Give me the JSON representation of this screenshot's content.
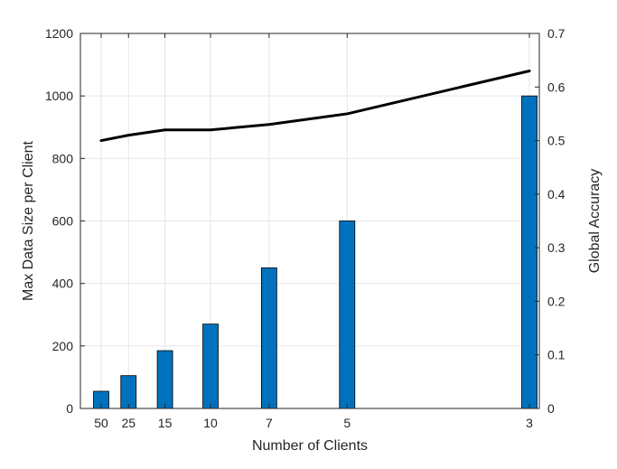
{
  "chart_data": {
    "type": "bar",
    "title": "",
    "xlabel": "Number of Clients",
    "ylabel_left": "Max Data Size per Client",
    "ylabel_right": "Global Accuracy",
    "x_axis": {
      "scale": "reciprocal",
      "ticks": [
        50,
        25,
        15,
        10,
        7,
        5,
        3
      ]
    },
    "ylim_left": [
      0,
      1200
    ],
    "ylim_right": [
      0,
      0.7
    ],
    "yticks_left": [
      0,
      200,
      400,
      600,
      800,
      1000,
      1200
    ],
    "yticks_right": [
      0,
      0.1,
      0.2,
      0.3,
      0.4,
      0.5,
      0.6,
      0.7
    ],
    "grid": true,
    "series": [
      {
        "kind": "bar",
        "axis": "left",
        "color": "#0072BD",
        "points": [
          {
            "x": 50,
            "y": 55
          },
          {
            "x": 25,
            "y": 105
          },
          {
            "x": 15,
            "y": 185
          },
          {
            "x": 10,
            "y": 270
          },
          {
            "x": 7,
            "y": 450
          },
          {
            "x": 5,
            "y": 600
          },
          {
            "x": 3,
            "y": 1000
          }
        ]
      },
      {
        "kind": "line",
        "axis": "right",
        "color": "#000000",
        "points": [
          {
            "x": 50,
            "y": 0.5
          },
          {
            "x": 25,
            "y": 0.51
          },
          {
            "x": 15,
            "y": 0.52
          },
          {
            "x": 10,
            "y": 0.52
          },
          {
            "x": 7,
            "y": 0.53
          },
          {
            "x": 5,
            "y": 0.55
          },
          {
            "x": 3,
            "y": 0.63
          }
        ]
      }
    ]
  }
}
